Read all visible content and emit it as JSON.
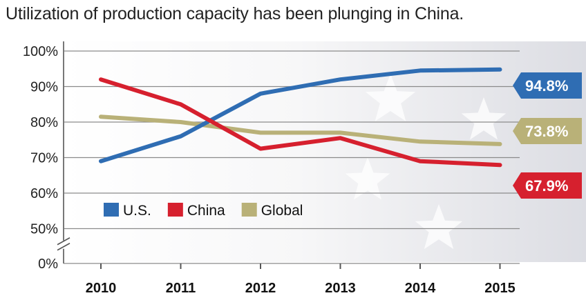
{
  "chart_data": {
    "type": "line",
    "title": "Utilization of production capacity has been plunging in China.",
    "x": [
      "2010",
      "2011",
      "2012",
      "2013",
      "2014",
      "2015"
    ],
    "ylim": [
      0,
      100
    ],
    "y_ticks": [
      {
        "value": 100,
        "label": "100%"
      },
      {
        "value": 90,
        "label": "90%"
      },
      {
        "value": 80,
        "label": "80%"
      },
      {
        "value": 70,
        "label": "70%"
      },
      {
        "value": 60,
        "label": "60%"
      },
      {
        "value": 50,
        "label": "50%"
      },
      {
        "value": 0,
        "label": "0%"
      }
    ],
    "axis_break": [
      0,
      50
    ],
    "grid": true,
    "legend_position": "lower-left",
    "series": [
      {
        "name": "U.S.",
        "color": "#2f6db3",
        "values": [
          69,
          76,
          88,
          92,
          94.5,
          94.8
        ],
        "end_label": "94.8%"
      },
      {
        "name": "China",
        "color": "#d6202e",
        "values": [
          92,
          85,
          72.5,
          75.5,
          69,
          67.9
        ],
        "end_label": "67.9%"
      },
      {
        "name": "Global",
        "color": "#b9b178",
        "values": [
          81.5,
          80,
          77,
          77,
          74.5,
          73.8
        ],
        "end_label": "73.8%"
      }
    ]
  }
}
